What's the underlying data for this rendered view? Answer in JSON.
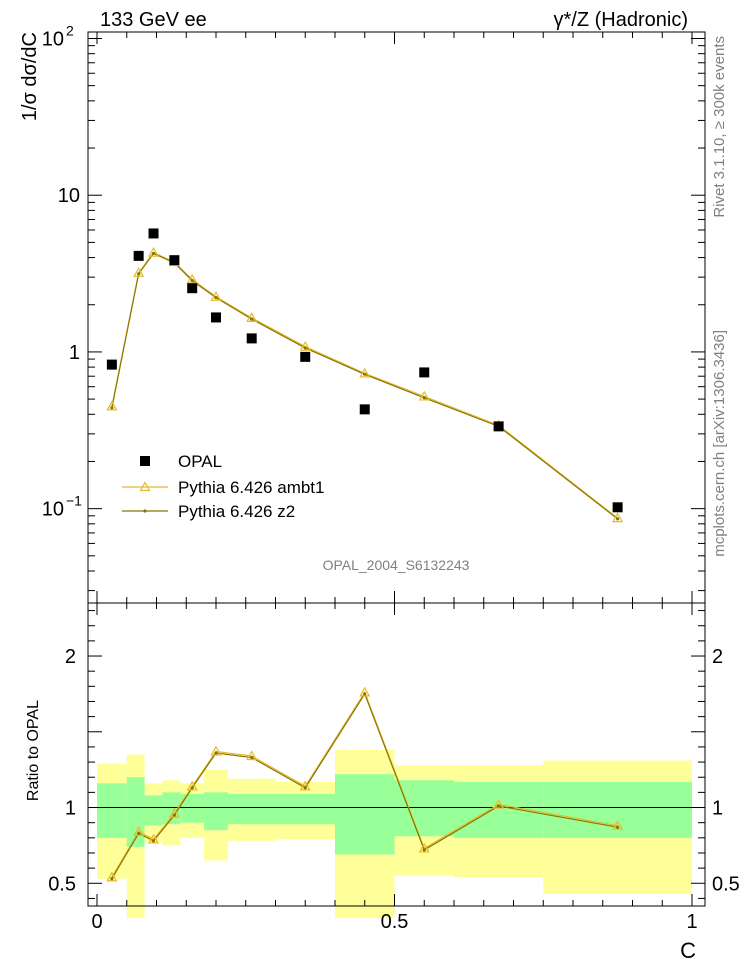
{
  "header": {
    "left": "133 GeV ee",
    "right": "γ*/Z (Hadronic)"
  },
  "side_text": {
    "rivet": "Rivet 3.1.10, ≥ 300k events",
    "mcplots": "mcplots.cern.ch [arXiv:1306.3436]"
  },
  "watermark": "OPAL_2004_S6132243",
  "chart_data": [
    {
      "type": "line",
      "panel": "main",
      "ylabel": "1/σ dσ/dC",
      "xlabel": "C",
      "xlim": [
        0,
        1
      ],
      "ylim": [
        0.025,
        110
      ],
      "yscale": "log",
      "yticks": [
        {
          "value": 0.1,
          "label": "10",
          "sup": "−1"
        },
        {
          "value": 1,
          "label": "1",
          "sup": ""
        },
        {
          "value": 10,
          "label": "10",
          "sup": ""
        },
        {
          "value": 100,
          "label": "10",
          "sup": "2"
        }
      ],
      "legend_position": "bottom-left",
      "series": [
        {
          "name": "OPAL",
          "style": "marker-square",
          "color": "#000000",
          "x": [
            0.025,
            0.07,
            0.095,
            0.13,
            0.16,
            0.2,
            0.26,
            0.35,
            0.45,
            0.55,
            0.675,
            0.875
          ],
          "y": [
            0.83,
            4.1,
            5.7,
            3.85,
            2.55,
            1.66,
            1.22,
            0.93,
            0.43,
            0.74,
            0.335,
            0.102
          ]
        },
        {
          "name": "Pythia 6.426 ambt1",
          "style": "line-open-triangle",
          "color": "#E3BB2A",
          "x": [
            0.025,
            0.07,
            0.095,
            0.13,
            0.16,
            0.2,
            0.26,
            0.35,
            0.45,
            0.55,
            0.675,
            0.875
          ],
          "y": [
            0.45,
            3.2,
            4.3,
            3.75,
            2.9,
            2.25,
            1.65,
            1.08,
            0.73,
            0.52,
            0.34,
            0.087
          ]
        },
        {
          "name": "Pythia 6.426 z2",
          "style": "line-dot",
          "color": "#8B7500",
          "x": [
            0.025,
            0.07,
            0.095,
            0.13,
            0.16,
            0.2,
            0.26,
            0.35,
            0.45,
            0.55,
            0.675,
            0.875
          ],
          "y": [
            0.44,
            3.15,
            4.25,
            3.7,
            2.85,
            2.22,
            1.62,
            1.06,
            0.72,
            0.51,
            0.335,
            0.086
          ]
        }
      ]
    },
    {
      "type": "line",
      "panel": "ratio",
      "ylabel": "Ratio to OPAL",
      "xlabel": "C",
      "xlim": [
        0,
        1
      ],
      "ylim": [
        0.35,
        2.35
      ],
      "yticks": [
        {
          "value": 0.5,
          "label": "0.5"
        },
        {
          "value": 1,
          "label": "1"
        },
        {
          "value": 2,
          "label": "2"
        }
      ],
      "xticks": [
        {
          "value": 0,
          "label": "0"
        },
        {
          "value": 0.5,
          "label": "0.5"
        },
        {
          "value": 1,
          "label": "1"
        }
      ],
      "error_bands": [
        {
          "x0": 0.0,
          "x1": 0.05,
          "inner": [
            0.8,
            1.16
          ],
          "outer": [
            0.53,
            1.29
          ]
        },
        {
          "x0": 0.05,
          "x1": 0.08,
          "inner": [
            0.74,
            1.2
          ],
          "outer": [
            0.27,
            1.35
          ]
        },
        {
          "x0": 0.08,
          "x1": 0.11,
          "inner": [
            0.88,
            1.08
          ],
          "outer": [
            0.77,
            1.16
          ]
        },
        {
          "x0": 0.11,
          "x1": 0.14,
          "inner": [
            0.89,
            1.1
          ],
          "outer": [
            0.75,
            1.18
          ]
        },
        {
          "x0": 0.14,
          "x1": 0.18,
          "inner": [
            0.9,
            1.09
          ],
          "outer": [
            0.8,
            1.16
          ]
        },
        {
          "x0": 0.18,
          "x1": 0.22,
          "inner": [
            0.85,
            1.1
          ],
          "outer": [
            0.65,
            1.25
          ]
        },
        {
          "x0": 0.22,
          "x1": 0.3,
          "inner": [
            0.89,
            1.09
          ],
          "outer": [
            0.78,
            1.19
          ]
        },
        {
          "x0": 0.3,
          "x1": 0.4,
          "inner": [
            0.89,
            1.09
          ],
          "outer": [
            0.79,
            1.17
          ]
        },
        {
          "x0": 0.4,
          "x1": 0.5,
          "inner": [
            0.69,
            1.22
          ],
          "outer": [
            0.27,
            1.38
          ]
        },
        {
          "x0": 0.5,
          "x1": 0.6,
          "inner": [
            0.81,
            1.18
          ],
          "outer": [
            0.55,
            1.28
          ]
        },
        {
          "x0": 0.6,
          "x1": 0.75,
          "inner": [
            0.8,
            1.17
          ],
          "outer": [
            0.54,
            1.28
          ]
        },
        {
          "x0": 0.75,
          "x1": 1.0,
          "inner": [
            0.8,
            1.17
          ],
          "outer": [
            0.43,
            1.31
          ]
        }
      ],
      "series": [
        {
          "name": "Pythia 6.426 ambt1",
          "style": "line-open-triangle",
          "color": "#E3BB2A",
          "x": [
            0.025,
            0.07,
            0.095,
            0.13,
            0.16,
            0.2,
            0.26,
            0.35,
            0.45,
            0.55,
            0.675,
            0.875
          ],
          "y": [
            0.54,
            0.84,
            0.79,
            0.96,
            1.14,
            1.37,
            1.34,
            1.14,
            1.76,
            0.73,
            1.02,
            0.88
          ]
        },
        {
          "name": "Pythia 6.426 z2",
          "style": "line-dot",
          "color": "#8B7500",
          "x": [
            0.025,
            0.07,
            0.095,
            0.13,
            0.16,
            0.2,
            0.26,
            0.35,
            0.45,
            0.55,
            0.675,
            0.875
          ],
          "y": [
            0.53,
            0.83,
            0.78,
            0.95,
            1.13,
            1.36,
            1.33,
            1.13,
            1.75,
            0.72,
            1.01,
            0.87
          ]
        }
      ]
    }
  ],
  "colors": {
    "band_inner": "#99FF99",
    "band_outer": "#FFFF99"
  }
}
